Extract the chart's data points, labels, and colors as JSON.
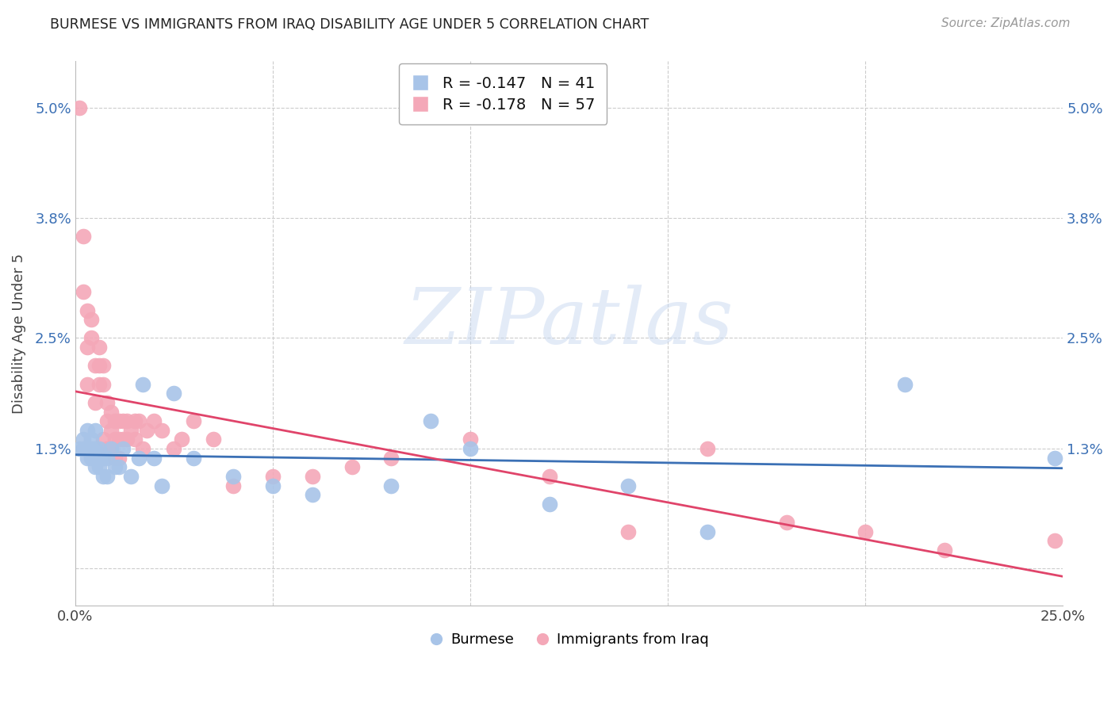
{
  "title": "BURMESE VS IMMIGRANTS FROM IRAQ DISABILITY AGE UNDER 5 CORRELATION CHART",
  "source": "Source: ZipAtlas.com",
  "ylabel_label": "Disability Age Under 5",
  "x_min": 0.0,
  "x_max": 0.25,
  "y_min": -0.004,
  "y_max": 0.055,
  "x_ticks": [
    0.0,
    0.05,
    0.1,
    0.15,
    0.2,
    0.25
  ],
  "y_ticks": [
    0.0,
    0.013,
    0.025,
    0.038,
    0.05
  ],
  "y_tick_labels": [
    "",
    "1.3%",
    "2.5%",
    "3.8%",
    "5.0%"
  ],
  "blue_color": "#a8c4e8",
  "pink_color": "#f4a8b8",
  "blue_line_color": "#3b70b5",
  "pink_line_color": "#e0446a",
  "legend_blue_R": "-0.147",
  "legend_blue_N": "41",
  "legend_pink_R": "-0.178",
  "legend_pink_N": "57",
  "legend_label_blue": "Burmese",
  "legend_label_pink": "Immigrants from Iraq",
  "background_color": "#ffffff",
  "grid_color": "#cccccc",
  "burmese_x": [
    0.001,
    0.002,
    0.002,
    0.003,
    0.003,
    0.003,
    0.004,
    0.004,
    0.004,
    0.005,
    0.005,
    0.005,
    0.005,
    0.006,
    0.006,
    0.007,
    0.007,
    0.008,
    0.008,
    0.009,
    0.01,
    0.011,
    0.012,
    0.014,
    0.016,
    0.017,
    0.02,
    0.022,
    0.025,
    0.03,
    0.04,
    0.05,
    0.06,
    0.08,
    0.09,
    0.1,
    0.12,
    0.14,
    0.16,
    0.21,
    0.248
  ],
  "burmese_y": [
    0.013,
    0.013,
    0.014,
    0.015,
    0.013,
    0.012,
    0.014,
    0.013,
    0.012,
    0.015,
    0.013,
    0.012,
    0.011,
    0.013,
    0.011,
    0.012,
    0.01,
    0.012,
    0.01,
    0.013,
    0.011,
    0.011,
    0.013,
    0.01,
    0.012,
    0.02,
    0.012,
    0.009,
    0.019,
    0.012,
    0.01,
    0.009,
    0.008,
    0.009,
    0.016,
    0.013,
    0.007,
    0.009,
    0.004,
    0.02,
    0.012
  ],
  "iraq_x": [
    0.001,
    0.002,
    0.002,
    0.003,
    0.003,
    0.003,
    0.004,
    0.004,
    0.005,
    0.005,
    0.006,
    0.006,
    0.006,
    0.007,
    0.007,
    0.007,
    0.008,
    0.008,
    0.008,
    0.009,
    0.009,
    0.009,
    0.01,
    0.01,
    0.01,
    0.011,
    0.011,
    0.011,
    0.012,
    0.012,
    0.013,
    0.013,
    0.014,
    0.015,
    0.015,
    0.016,
    0.017,
    0.018,
    0.02,
    0.022,
    0.025,
    0.027,
    0.03,
    0.035,
    0.04,
    0.05,
    0.06,
    0.07,
    0.08,
    0.1,
    0.12,
    0.14,
    0.16,
    0.18,
    0.2,
    0.22,
    0.248
  ],
  "iraq_y": [
    0.05,
    0.036,
    0.03,
    0.028,
    0.024,
    0.02,
    0.027,
    0.025,
    0.022,
    0.018,
    0.024,
    0.022,
    0.02,
    0.022,
    0.02,
    0.014,
    0.018,
    0.016,
    0.013,
    0.017,
    0.015,
    0.013,
    0.016,
    0.014,
    0.012,
    0.016,
    0.014,
    0.012,
    0.016,
    0.014,
    0.016,
    0.014,
    0.015,
    0.016,
    0.014,
    0.016,
    0.013,
    0.015,
    0.016,
    0.015,
    0.013,
    0.014,
    0.016,
    0.014,
    0.009,
    0.01,
    0.01,
    0.011,
    0.012,
    0.014,
    0.01,
    0.004,
    0.013,
    0.005,
    0.004,
    0.002,
    0.003
  ]
}
